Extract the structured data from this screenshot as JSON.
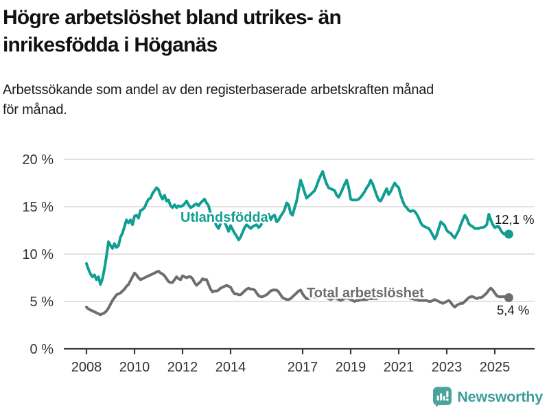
{
  "page": {
    "title_lines": [
      "Högre arbetslöshet bland utrikes- än",
      "inrikesfödda i Höganäs"
    ],
    "subtitle_lines": [
      "Arbetssökande som andel av den registerbaserade arbetskraften månad",
      "för månad."
    ]
  },
  "footer": {
    "brand": "Newsworthy",
    "brand_color": "#3d9e99",
    "icon_color": "#4ba39e"
  },
  "chart_data": {
    "type": "line",
    "title": "Högre arbetslöshet bland utrikes- än inrikesfödda i Höganäs",
    "subtitle": "Arbetssökande som andel av den registerbaserade arbetskraften månad för månad.",
    "xlabel": "",
    "ylabel": "",
    "x_start": "2008-01",
    "x_end": "2025-08",
    "frequency": "monthly",
    "ylim": [
      0,
      20
    ],
    "ytick_values": [
      0,
      5,
      10,
      15,
      20
    ],
    "ytick_labels": [
      "0 %",
      "5 %",
      "10 %",
      "15 %",
      "20 %"
    ],
    "xtick_years": [
      2008,
      2010,
      2012,
      2014,
      2017,
      2019,
      2021,
      2023,
      2025
    ],
    "xtick_labels": [
      "2008",
      "2010",
      "2012",
      "2014",
      "2017",
      "2019",
      "2021",
      "2023",
      "2025"
    ],
    "grid": true,
    "legend_position": "inline-labels",
    "colors": {
      "grid": "#d9d9d9",
      "axis": "#3c3c3c",
      "tick_text": "#333333",
      "end_label_text": "#1a1a1a"
    },
    "series": [
      {
        "name": "Utlandsfödda",
        "color": "#119e92",
        "end_label": "12,1 %",
        "end_value": 12.1,
        "values": [
          9.0,
          8.4,
          7.9,
          7.6,
          7.8,
          7.3,
          7.6,
          6.8,
          7.4,
          8.5,
          9.8,
          11.3,
          10.9,
          10.6,
          11.1,
          10.7,
          10.9,
          11.8,
          12.2,
          12.9,
          13.6,
          13.3,
          13.6,
          13.1,
          14.0,
          14.1,
          13.8,
          14.6,
          14.7,
          14.9,
          15.4,
          15.8,
          15.9,
          16.4,
          16.7,
          17.0,
          16.8,
          16.2,
          15.8,
          16.2,
          15.6,
          15.7,
          15.1,
          14.9,
          15.2,
          14.9,
          15.1,
          15.0,
          15.1,
          15.3,
          15.6,
          15.2,
          14.9,
          15.0,
          15.2,
          15.3,
          15.1,
          15.4,
          15.6,
          15.8,
          15.4,
          15.1,
          14.3,
          13.8,
          13.4,
          13.0,
          12.7,
          13.2,
          13.9,
          13.4,
          12.9,
          12.4,
          13.0,
          12.6,
          12.2,
          11.9,
          11.5,
          11.8,
          12.3,
          12.8,
          13.1,
          12.9,
          12.7,
          12.9,
          13.0,
          13.1,
          12.8,
          13.0,
          13.4,
          13.7,
          14.0,
          14.2,
          13.6,
          14.0,
          14.1,
          13.4,
          13.6,
          14.0,
          14.3,
          14.7,
          15.4,
          15.2,
          14.3,
          14.1,
          14.9,
          15.6,
          16.8,
          17.8,
          17.2,
          16.5,
          15.9,
          16.1,
          16.3,
          16.5,
          16.7,
          17.2,
          17.8,
          18.3,
          18.7,
          18.0,
          17.4,
          17.0,
          16.9,
          16.8,
          16.7,
          16.2,
          16.0,
          16.4,
          16.9,
          17.4,
          17.8,
          17.0,
          15.8,
          15.7,
          15.7,
          15.7,
          15.8,
          16.0,
          16.3,
          16.6,
          17.0,
          17.3,
          17.8,
          17.4,
          16.8,
          16.2,
          15.7,
          15.6,
          16.0,
          16.5,
          16.9,
          16.3,
          16.6,
          17.1,
          17.5,
          17.2,
          17.0,
          16.2,
          15.6,
          15.1,
          14.9,
          14.6,
          14.5,
          14.6,
          14.5,
          14.2,
          13.8,
          13.3,
          13.0,
          12.9,
          12.8,
          12.7,
          12.4,
          12.0,
          11.6,
          12.0,
          12.7,
          13.4,
          13.2,
          13.0,
          12.5,
          12.3,
          12.2,
          11.9,
          11.7,
          12.1,
          12.5,
          13.1,
          13.6,
          14.1,
          13.8,
          13.2,
          13.0,
          12.9,
          12.7,
          12.7,
          12.7,
          12.8,
          12.8,
          12.9,
          13.1,
          14.2,
          13.6,
          13.1,
          12.8,
          12.9,
          12.9,
          12.5,
          12.2,
          12.1,
          12.0,
          12.1
        ]
      },
      {
        "name": "Total arbetslöshet",
        "color": "#6e6e6e",
        "end_label": "5,4 %",
        "end_value": 5.4,
        "values": [
          4.4,
          4.2,
          4.1,
          4.0,
          3.9,
          3.8,
          3.7,
          3.6,
          3.7,
          3.8,
          4.0,
          4.3,
          4.7,
          5.1,
          5.4,
          5.7,
          5.8,
          5.9,
          6.1,
          6.3,
          6.6,
          6.8,
          7.2,
          7.6,
          8.0,
          7.8,
          7.5,
          7.3,
          7.4,
          7.5,
          7.6,
          7.7,
          7.8,
          7.9,
          8.0,
          8.1,
          8.2,
          8.0,
          7.9,
          7.7,
          7.4,
          7.1,
          7.0,
          7.0,
          7.3,
          7.6,
          7.4,
          7.3,
          7.7,
          7.6,
          7.5,
          7.6,
          7.6,
          7.4,
          7.0,
          6.7,
          6.9,
          7.1,
          7.4,
          7.3,
          7.3,
          6.8,
          6.3,
          6.0,
          6.1,
          6.1,
          6.2,
          6.4,
          6.5,
          6.6,
          6.7,
          6.6,
          6.5,
          6.1,
          5.8,
          5.8,
          5.7,
          5.7,
          5.9,
          6.1,
          6.3,
          6.4,
          6.3,
          6.3,
          6.2,
          5.9,
          5.6,
          5.5,
          5.5,
          5.6,
          5.7,
          5.9,
          6.1,
          6.2,
          6.2,
          6.2,
          6.0,
          5.7,
          5.4,
          5.3,
          5.2,
          5.2,
          5.3,
          5.5,
          5.7,
          5.9,
          6.1,
          6.2,
          5.8,
          5.5,
          5.3,
          5.3,
          5.4,
          5.5,
          5.5,
          5.4,
          5.5,
          5.6,
          5.6,
          5.5,
          5.4,
          5.3,
          5.2,
          5.3,
          5.4,
          5.3,
          5.2,
          5.1,
          5.2,
          5.3,
          5.4,
          5.3,
          5.2,
          5.1,
          5.0,
          5.1,
          5.1,
          5.2,
          5.2,
          5.2,
          5.2,
          5.3,
          5.3,
          5.3,
          5.3,
          5.3,
          5.5,
          5.9,
          6.1,
          6.2,
          6.2,
          6.2,
          6.1,
          6.0,
          5.9,
          5.9,
          5.9,
          5.8,
          5.7,
          5.6,
          5.5,
          5.4,
          5.3,
          5.3,
          5.2,
          5.2,
          5.1,
          5.1,
          5.1,
          5.1,
          5.1,
          5.0,
          5.0,
          5.1,
          5.2,
          5.1,
          5.0,
          4.9,
          4.8,
          4.9,
          5.0,
          5.1,
          4.9,
          4.6,
          4.4,
          4.6,
          4.7,
          4.8,
          4.8,
          5.0,
          5.2,
          5.4,
          5.5,
          5.5,
          5.4,
          5.3,
          5.4,
          5.4,
          5.5,
          5.7,
          5.9,
          6.2,
          6.4,
          6.2,
          5.9,
          5.6,
          5.5,
          5.5,
          5.5,
          5.5,
          5.5,
          5.4
        ]
      }
    ]
  }
}
